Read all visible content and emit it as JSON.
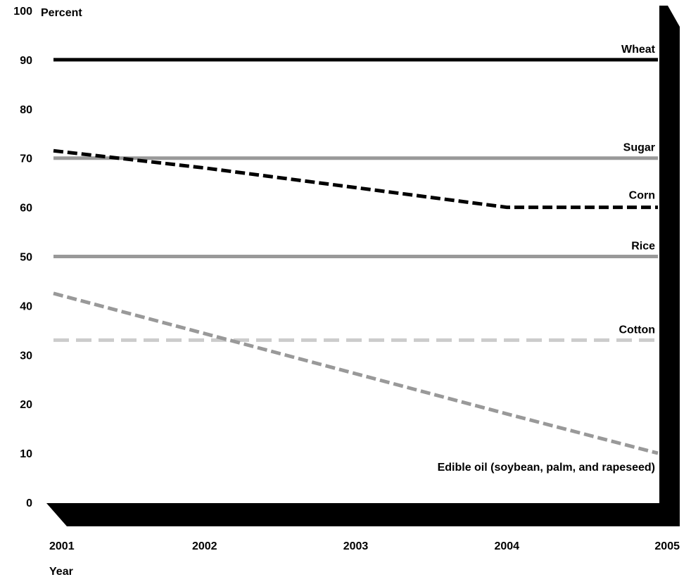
{
  "chart_data": {
    "type": "line",
    "ylabel": "Percent",
    "xlabel": "Year",
    "x": [
      2001,
      2002,
      2003,
      2004,
      2005
    ],
    "x_ticks": [
      "2001",
      "2002",
      "2003",
      "2004",
      "2005"
    ],
    "y_ticks": [
      "0",
      "10",
      "20",
      "30",
      "40",
      "50",
      "60",
      "70",
      "80",
      "90",
      "100"
    ],
    "ylim": [
      0,
      100
    ],
    "xlim": [
      2001,
      2005
    ],
    "grid": false,
    "series": [
      {
        "name": "Wheat",
        "x": [
          2001,
          2005
        ],
        "y": [
          90,
          90
        ],
        "color": "#000000",
        "dashed": false
      },
      {
        "name": "Sugar",
        "x": [
          2001,
          2005
        ],
        "y": [
          70,
          70
        ],
        "color": "#999999",
        "dashed": false
      },
      {
        "name": "Corn",
        "x": [
          2001,
          2002,
          2003,
          2004,
          2005
        ],
        "y": [
          71.5,
          68,
          64,
          60,
          60
        ],
        "color": "#000000",
        "dashed": true
      },
      {
        "name": "Rice",
        "x": [
          2001,
          2005
        ],
        "y": [
          50,
          50
        ],
        "color": "#999999",
        "dashed": false
      },
      {
        "name": "Cotton",
        "x": [
          2001,
          2005
        ],
        "y": [
          33,
          33
        ],
        "color": "#cccccc",
        "dashed": true
      },
      {
        "name": "Edible oil (soybean, palm, and rapeseed)",
        "x": [
          2001,
          2004,
          2005
        ],
        "y": [
          42.5,
          18,
          10
        ],
        "color": "#999999",
        "dashed": true
      }
    ]
  }
}
